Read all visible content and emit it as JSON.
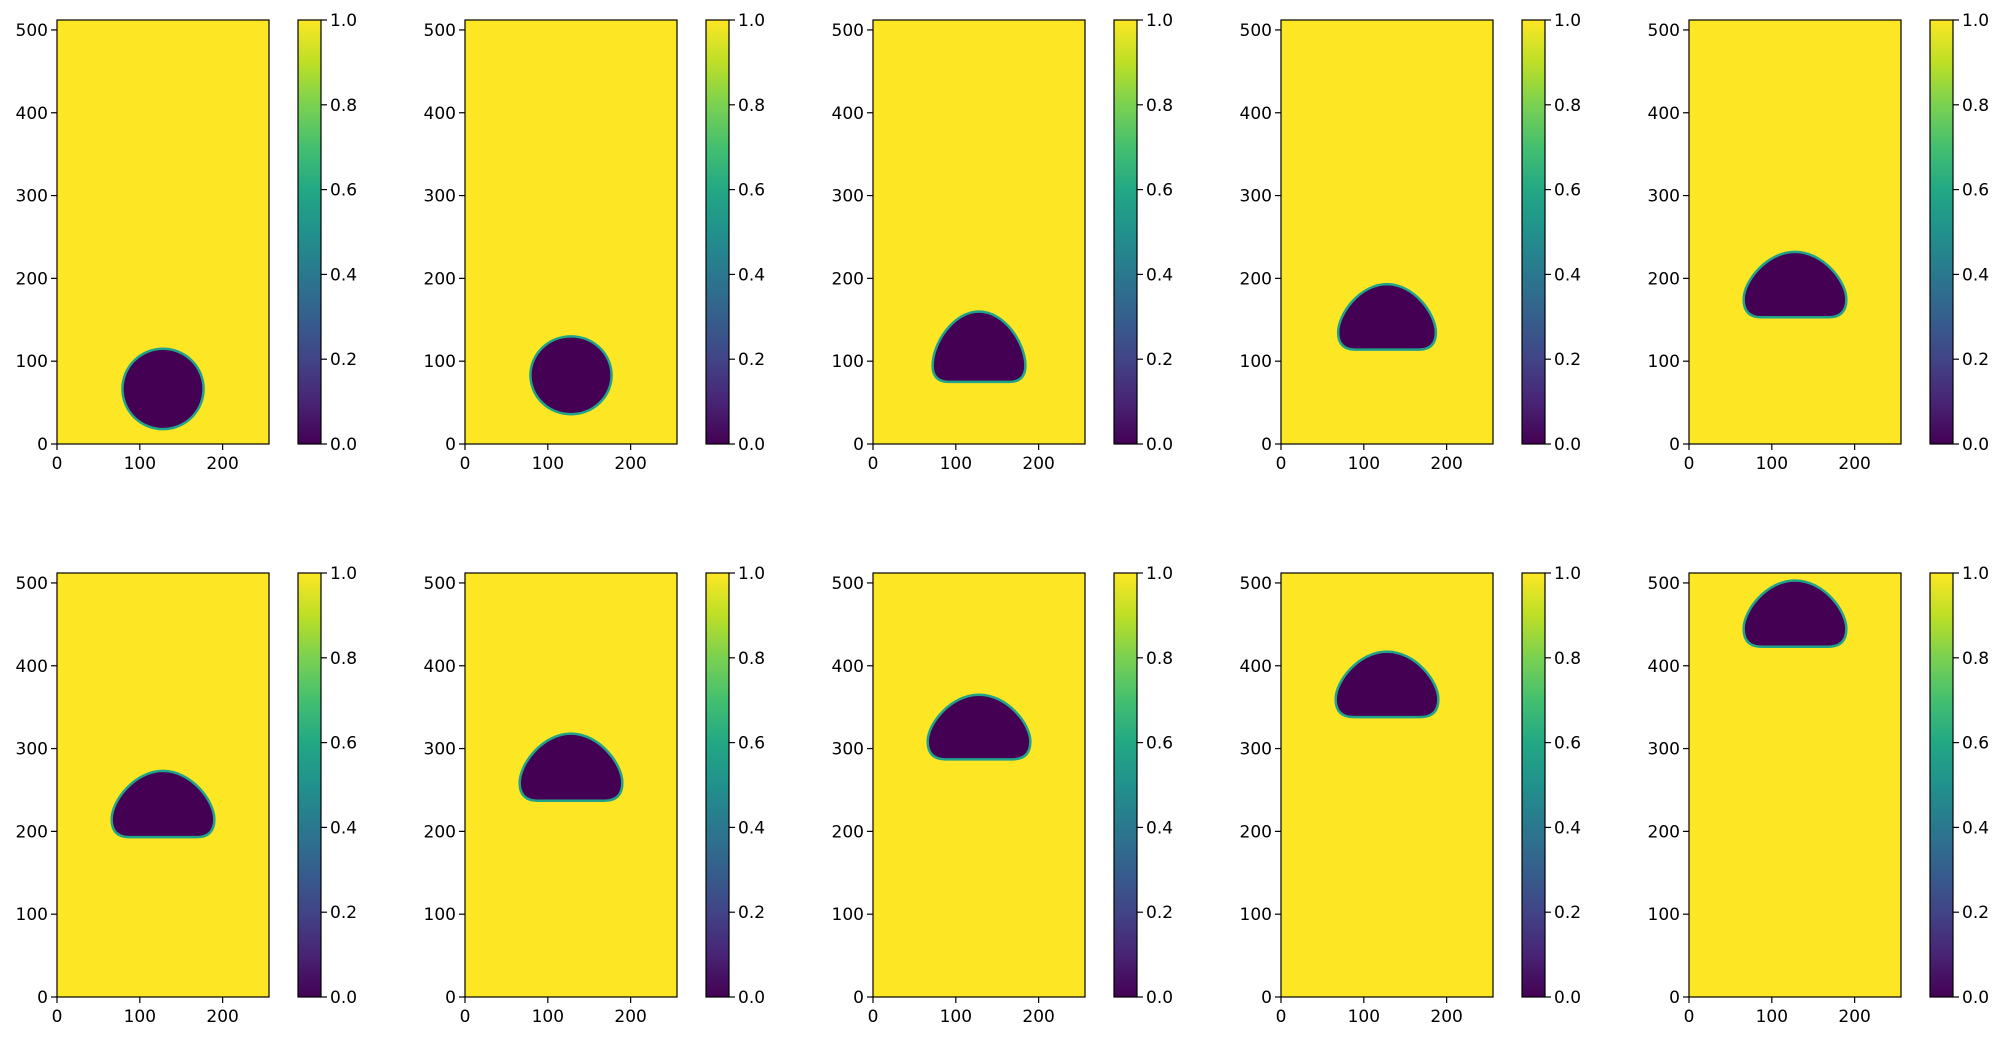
{
  "chart_data": {
    "type": "heatmap",
    "layout": "2 rows x 5 columns",
    "colormap": "viridis",
    "x_range": [
      0,
      256
    ],
    "y_range": [
      0,
      512
    ],
    "colorbar_range": [
      0,
      1
    ],
    "x_ticks": [
      "0",
      "100",
      "200"
    ],
    "y_ticks": [
      "0",
      "100",
      "200",
      "300",
      "400",
      "500"
    ],
    "colorbar_ticks": [
      "0.0",
      "0.2",
      "0.4",
      "0.6",
      "0.8",
      "1.0"
    ],
    "background_value": 1.0,
    "bubble_value": 0.0,
    "subplots": [
      {
        "shape": "circle",
        "center_x": 128,
        "bottom_y": 18,
        "top_y": 115,
        "half_width": 49
      },
      {
        "shape": "circle",
        "center_x": 128,
        "bottom_y": 36,
        "top_y": 130,
        "half_width": 49
      },
      {
        "shape": "cap",
        "center_x": 128,
        "bottom_y": 75,
        "top_y": 160,
        "half_width": 56
      },
      {
        "shape": "cap",
        "center_x": 128,
        "bottom_y": 114,
        "top_y": 193,
        "half_width": 59
      },
      {
        "shape": "cap",
        "center_x": 128,
        "bottom_y": 153,
        "top_y": 232,
        "half_width": 62
      },
      {
        "shape": "cap",
        "center_x": 128,
        "bottom_y": 193,
        "top_y": 273,
        "half_width": 62
      },
      {
        "shape": "cap",
        "center_x": 128,
        "bottom_y": 237,
        "top_y": 318,
        "half_width": 62
      },
      {
        "shape": "cap",
        "center_x": 128,
        "bottom_y": 287,
        "top_y": 365,
        "half_width": 62
      },
      {
        "shape": "cap",
        "center_x": 128,
        "bottom_y": 338,
        "top_y": 417,
        "half_width": 62
      },
      {
        "shape": "cap",
        "center_x": 128,
        "bottom_y": 423,
        "top_y": 503,
        "half_width": 62
      }
    ]
  },
  "colors": {
    "high": "#fde725",
    "low": "#440154",
    "edge": "#21a38a"
  }
}
